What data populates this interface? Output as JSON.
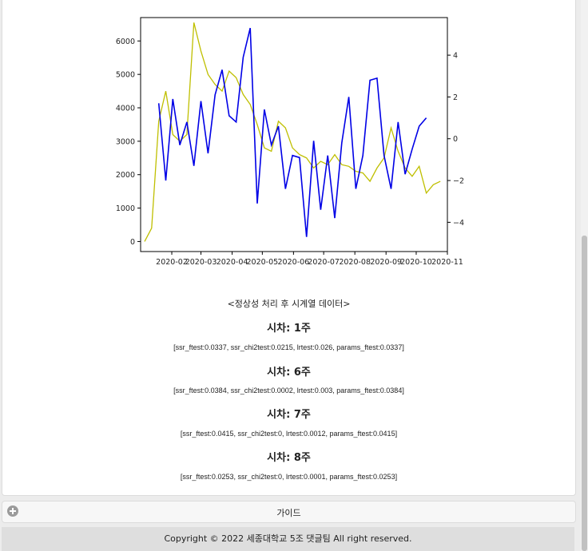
{
  "chart_data": {
    "type": "line",
    "xlabel": "",
    "ylabel_left": "",
    "ylabel_right": "",
    "x_ticks": [
      "2020-02",
      "2020-03",
      "2020-04",
      "2020-05",
      "2020-06",
      "2020-07",
      "2020-08",
      "2020-09",
      "2020-10",
      "2020-11"
    ],
    "y_left_ticks": [
      0,
      1000,
      2000,
      3000,
      4000,
      5000,
      6000
    ],
    "y_right_ticks": [
      -4,
      -2,
      0,
      2,
      4
    ],
    "ylim_left": [
      -300,
      6700
    ],
    "ylim_right": [
      -5.4,
      5.8
    ],
    "xlim": [
      "2020-01-01",
      "2020-11-01"
    ],
    "series": [
      {
        "axis": "left",
        "color": "#bfbf00",
        "points": [
          [
            "2020-01-05",
            0
          ],
          [
            "2020-01-12",
            400
          ],
          [
            "2020-01-19",
            3600
          ],
          [
            "2020-01-26",
            4500
          ],
          [
            "2020-02-02",
            3200
          ],
          [
            "2020-02-09",
            3000
          ],
          [
            "2020-02-16",
            3200
          ],
          [
            "2020-02-23",
            6550
          ],
          [
            "2020-03-01",
            5700
          ],
          [
            "2020-03-08",
            5000
          ],
          [
            "2020-03-15",
            4700
          ],
          [
            "2020-03-22",
            4500
          ],
          [
            "2020-03-29",
            5100
          ],
          [
            "2020-04-05",
            4900
          ],
          [
            "2020-04-12",
            4400
          ],
          [
            "2020-04-19",
            4100
          ],
          [
            "2020-04-26",
            3500
          ],
          [
            "2020-05-03",
            2800
          ],
          [
            "2020-05-10",
            2700
          ],
          [
            "2020-05-17",
            3600
          ],
          [
            "2020-05-24",
            3400
          ],
          [
            "2020-05-31",
            2800
          ],
          [
            "2020-06-07",
            2600
          ],
          [
            "2020-06-14",
            2500
          ],
          [
            "2020-06-21",
            2200
          ],
          [
            "2020-06-28",
            2400
          ],
          [
            "2020-07-05",
            2300
          ],
          [
            "2020-07-12",
            2600
          ],
          [
            "2020-07-19",
            2300
          ],
          [
            "2020-07-26",
            2250
          ],
          [
            "2020-08-02",
            2100
          ],
          [
            "2020-08-09",
            2050
          ],
          [
            "2020-08-16",
            1800
          ],
          [
            "2020-08-23",
            2200
          ],
          [
            "2020-08-30",
            2500
          ],
          [
            "2020-09-06",
            3400
          ],
          [
            "2020-09-13",
            2700
          ],
          [
            "2020-09-20",
            2200
          ],
          [
            "2020-09-27",
            1950
          ],
          [
            "2020-10-04",
            2250
          ],
          [
            "2020-10-11",
            1450
          ],
          [
            "2020-10-18",
            1700
          ],
          [
            "2020-10-25",
            1800
          ]
        ]
      },
      {
        "axis": "right",
        "color": "#0000e6",
        "points": [
          [
            "2020-01-19",
            1.7
          ],
          [
            "2020-01-26",
            -2.0
          ],
          [
            "2020-02-02",
            1.9
          ],
          [
            "2020-02-09",
            -0.3
          ],
          [
            "2020-02-16",
            0.8
          ],
          [
            "2020-02-23",
            -1.3
          ],
          [
            "2020-03-01",
            1.8
          ],
          [
            "2020-03-08",
            -0.7
          ],
          [
            "2020-03-15",
            2.1
          ],
          [
            "2020-03-22",
            3.3
          ],
          [
            "2020-03-29",
            1.1
          ],
          [
            "2020-04-05",
            0.8
          ],
          [
            "2020-04-12",
            3.9
          ],
          [
            "2020-04-19",
            5.3
          ],
          [
            "2020-04-26",
            -3.1
          ],
          [
            "2020-05-03",
            1.4
          ],
          [
            "2020-05-10",
            -0.3
          ],
          [
            "2020-05-17",
            0.6
          ],
          [
            "2020-05-24",
            -2.4
          ],
          [
            "2020-05-31",
            -0.8
          ],
          [
            "2020-06-07",
            -0.9
          ],
          [
            "2020-06-14",
            -4.7
          ],
          [
            "2020-06-21",
            -0.1
          ],
          [
            "2020-06-28",
            -3.4
          ],
          [
            "2020-07-05",
            -0.8
          ],
          [
            "2020-07-12",
            -3.8
          ],
          [
            "2020-07-19",
            -0.2
          ],
          [
            "2020-07-26",
            2.0
          ],
          [
            "2020-08-02",
            -2.4
          ],
          [
            "2020-08-09",
            -0.8
          ],
          [
            "2020-08-16",
            2.8
          ],
          [
            "2020-08-23",
            2.9
          ],
          [
            "2020-08-30",
            -0.8
          ],
          [
            "2020-09-06",
            -2.4
          ],
          [
            "2020-09-13",
            0.8
          ],
          [
            "2020-09-20",
            -1.7
          ],
          [
            "2020-09-27",
            -0.5
          ],
          [
            "2020-10-04",
            0.6
          ],
          [
            "2020-10-11",
            1.0
          ]
        ]
      }
    ]
  },
  "caption": "<정상성 처리 후 시계열 데이터>",
  "lags": [
    {
      "title": "시차: 1주",
      "stats": "[ssr_ftest:0.0337, ssr_chi2test:0.0215, lrtest:0.026, params_ftest:0.0337]"
    },
    {
      "title": "시차: 6주",
      "stats": "[ssr_ftest:0.0384, ssr_chi2test:0.0002, lrtest:0.003, params_ftest:0.0384]"
    },
    {
      "title": "시차: 7주",
      "stats": "[ssr_ftest:0.0415, ssr_chi2test:0, lrtest:0.0012, params_ftest:0.0415]"
    },
    {
      "title": "시차: 8주",
      "stats": "[ssr_ftest:0.0253, ssr_chi2test:0, lrtest:0.0001, params_ftest:0.0253]"
    }
  ],
  "guide": {
    "label": "가이드",
    "icon": "plus-circle-icon"
  },
  "footer": {
    "text": "Copyright © 2022 세종대학교 5조 댓글팀 All right reserved."
  }
}
